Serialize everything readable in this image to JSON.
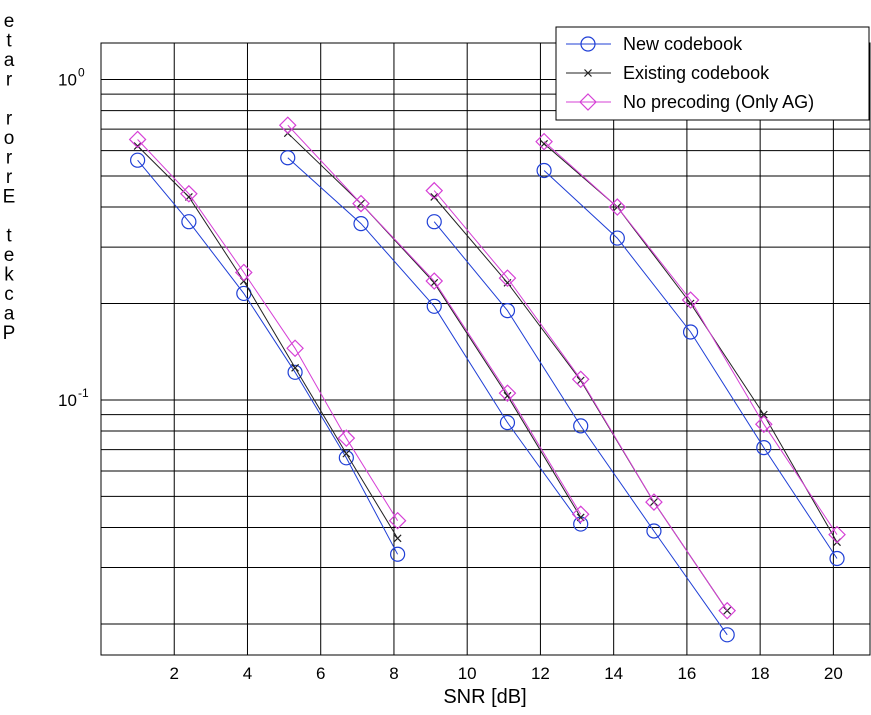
{
  "chart_data": {
    "type": "line",
    "title": "",
    "xlabel": "SNR [dB]",
    "ylabel": "Packet Error rate",
    "xlim": [
      0,
      21
    ],
    "ylim": [
      0.016,
      1.3
    ],
    "yscale": "log",
    "grid": true,
    "legend_position": "top-right",
    "x_ticks": [
      2,
      4,
      6,
      8,
      10,
      12,
      14,
      16,
      18,
      20
    ],
    "y_ticks": [
      {
        "value": 1,
        "base": "10",
        "exp": "0"
      },
      {
        "value": 0.1,
        "base": "10",
        "exp": "-1"
      }
    ],
    "series": [
      {
        "name": "New codebook",
        "color": "#1f3fd6",
        "marker": "circle",
        "segments": [
          [
            [
              1,
              0.56
            ],
            [
              2.4,
              0.36
            ],
            [
              3.9,
              0.215
            ],
            [
              5.3,
              0.122
            ],
            [
              6.7,
              0.066
            ],
            [
              8.1,
              0.033
            ]
          ],
          [
            [
              5.1,
              0.57
            ],
            [
              7.1,
              0.355
            ],
            [
              9.1,
              0.196
            ],
            [
              11.1,
              0.085
            ],
            [
              13.1,
              0.041
            ]
          ],
          [
            [
              9.1,
              0.36
            ],
            [
              11.1,
              0.19
            ],
            [
              13.1,
              0.083
            ],
            [
              15.1,
              0.039
            ],
            [
              17.1,
              0.0185
            ]
          ],
          [
            [
              12.1,
              0.52
            ],
            [
              14.1,
              0.32
            ],
            [
              16.1,
              0.163
            ],
            [
              18.1,
              0.071
            ],
            [
              20.1,
              0.032
            ]
          ]
        ]
      },
      {
        "name": "Existing codebook",
        "color": "#222222",
        "marker": "x",
        "segments": [
          [
            [
              1,
              0.62
            ],
            [
              2.4,
              0.43
            ],
            [
              3.9,
              0.235
            ],
            [
              5.3,
              0.126
            ],
            [
              6.7,
              0.068
            ],
            [
              8.1,
              0.037
            ]
          ],
          [
            [
              5.1,
              0.68
            ],
            [
              7.1,
              0.41
            ],
            [
              9.1,
              0.232
            ],
            [
              11.1,
              0.103
            ],
            [
              13.1,
              0.043
            ]
          ],
          [
            [
              9.1,
              0.43
            ],
            [
              11.1,
              0.232
            ],
            [
              13.1,
              0.115
            ],
            [
              15.1,
              0.048
            ],
            [
              17.1,
              0.022
            ]
          ],
          [
            [
              12.1,
              0.63
            ],
            [
              14.1,
              0.4
            ],
            [
              16.1,
              0.2
            ],
            [
              18.1,
              0.09
            ],
            [
              20.1,
              0.036
            ]
          ]
        ]
      },
      {
        "name": "No precoding (Only AG)",
        "color": "#d640d6",
        "marker": "diamond",
        "segments": [
          [
            [
              1,
              0.65
            ],
            [
              2.4,
              0.44
            ],
            [
              3.9,
              0.25
            ],
            [
              5.3,
              0.145
            ],
            [
              6.7,
              0.076
            ],
            [
              8.1,
              0.042
            ]
          ],
          [
            [
              5.1,
              0.72
            ],
            [
              7.1,
              0.41
            ],
            [
              9.1,
              0.235
            ],
            [
              11.1,
              0.105
            ],
            [
              13.1,
              0.044
            ]
          ],
          [
            [
              9.1,
              0.45
            ],
            [
              11.1,
              0.24
            ],
            [
              13.1,
              0.116
            ],
            [
              15.1,
              0.048
            ],
            [
              17.1,
              0.022
            ]
          ],
          [
            [
              12.1,
              0.64
            ],
            [
              14.1,
              0.4
            ],
            [
              16.1,
              0.205
            ],
            [
              18.1,
              0.084
            ],
            [
              20.1,
              0.038
            ]
          ]
        ]
      }
    ]
  }
}
